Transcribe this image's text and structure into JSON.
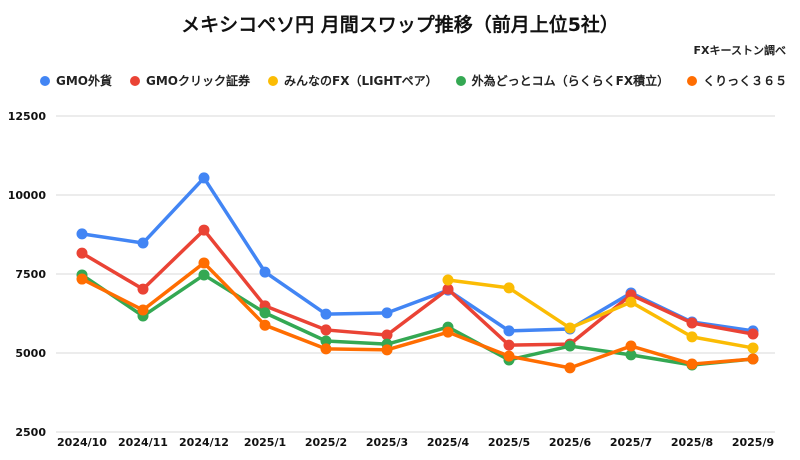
{
  "chart_data": {
    "type": "line",
    "title": "メキシコペソ円 月間スワップ推移（前月上位5社）",
    "source_note": "FXキーストン調べ",
    "legend_position": "top",
    "grid": true,
    "ylim": [
      2500,
      12500
    ],
    "yticks": [
      2500,
      5000,
      7500,
      10000,
      12500
    ],
    "categories": [
      "2024/10",
      "2024/11",
      "2024/12",
      "2025/1",
      "2025/2",
      "2025/3",
      "2025/4",
      "2025/5",
      "2025/6",
      "2025/7",
      "2025/8",
      "2025/9"
    ],
    "series": [
      {
        "name": "GMO外貨",
        "color": "#4285f4",
        "values": [
          8770,
          8480,
          10540,
          7560,
          6230,
          6270,
          6990,
          5700,
          5760,
          6900,
          5980,
          5700
        ]
      },
      {
        "name": "GMOクリック証券",
        "color": "#ea4335",
        "values": [
          8160,
          7020,
          8890,
          6490,
          5730,
          5570,
          7020,
          5250,
          5280,
          6840,
          5950,
          5600
        ]
      },
      {
        "name": "みんなのFX（LIGHTペア）",
        "color": "#fbbc04",
        "values": [
          null,
          null,
          null,
          null,
          null,
          null,
          7310,
          7060,
          5790,
          6610,
          5510,
          5160
        ]
      },
      {
        "name": "外為どっとコム（らくらくFX積立）",
        "color": "#34a853",
        "values": [
          7470,
          6170,
          7470,
          6270,
          5380,
          5280,
          5820,
          4780,
          5220,
          4940,
          4620,
          4810
        ]
      },
      {
        "name": "くりっく３６５",
        "color": "#ff6d01",
        "values": [
          7340,
          6360,
          7850,
          5880,
          5130,
          5100,
          5660,
          4900,
          4530,
          5220,
          4650,
          4810
        ]
      }
    ]
  }
}
